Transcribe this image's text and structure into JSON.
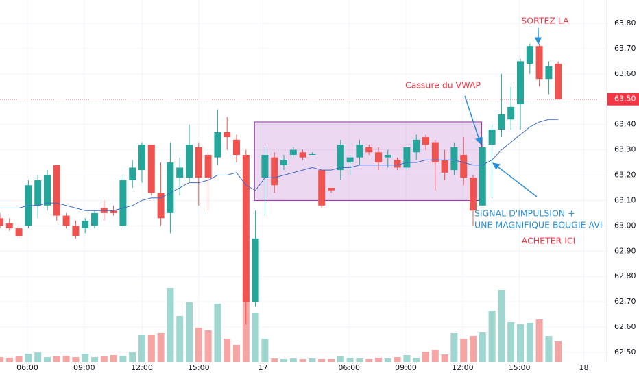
{
  "chart_data": {
    "type": "candlestick",
    "x": [
      0,
      1,
      2,
      3,
      4,
      5,
      6,
      7,
      8,
      9,
      10,
      11,
      12,
      13,
      14,
      15,
      16,
      17,
      18,
      19,
      20,
      21,
      22,
      23,
      24,
      25,
      26,
      27,
      28,
      29,
      30,
      31,
      32,
      33,
      34,
      35,
      36,
      37,
      38,
      39,
      40,
      41,
      42,
      43,
      44,
      45,
      46,
      47,
      48,
      49,
      50,
      51,
      52,
      53,
      54,
      55,
      56,
      57,
      58,
      59
    ],
    "open": [
      63.03,
      63.01,
      62.99,
      63.0,
      63.08,
      63.08,
      63.24,
      63.04,
      63.0,
      62.99,
      63.0,
      63.07,
      63.06,
      63.0,
      63.18,
      63.22,
      63.32,
      63.13,
      63.05,
      63.19,
      63.19,
      63.31,
      63.28,
      63.27,
      63.37,
      63.34,
      63.28,
      62.7,
      63.19,
      63.27,
      63.24,
      63.28,
      63.29,
      63.28,
      63.22,
      63.15,
      63.22,
      63.25,
      63.27,
      63.31,
      63.29,
      63.27,
      63.26,
      63.23,
      63.29,
      63.35,
      63.33,
      63.26,
      63.22,
      63.28,
      63.19,
      63.08,
      63.32,
      63.38,
      63.42,
      63.48,
      63.64,
      63.71,
      63.58,
      63.64
    ],
    "high": [
      63.05,
      63.03,
      63.0,
      63.18,
      63.2,
      63.22,
      63.24,
      63.05,
      63.02,
      63.03,
      63.06,
      63.1,
      63.08,
      63.2,
      63.26,
      63.33,
      63.32,
      63.25,
      63.33,
      63.27,
      63.4,
      63.33,
      63.29,
      63.46,
      63.43,
      63.36,
      63.3,
      63.06,
      63.31,
      63.29,
      63.28,
      63.31,
      63.3,
      63.29,
      63.22,
      63.15,
      63.34,
      63.28,
      63.34,
      63.32,
      63.31,
      63.3,
      63.27,
      63.32,
      63.36,
      63.36,
      63.34,
      63.3,
      63.33,
      63.35,
      63.2,
      63.35,
      63.4,
      63.6,
      63.55,
      63.66,
      63.72,
      63.72,
      63.65,
      63.65
    ],
    "low": [
      62.99,
      62.98,
      62.95,
      62.99,
      63.03,
      63.06,
      63.02,
      62.99,
      62.95,
      62.97,
      62.99,
      63.02,
      63.04,
      62.99,
      63.15,
      63.17,
      63.12,
      63.0,
      62.97,
      63.12,
      63.17,
      63.08,
      63.06,
      63.24,
      63.3,
      63.25,
      62.61,
      62.68,
      63.04,
      63.13,
      63.22,
      63.27,
      63.26,
      63.28,
      63.07,
      63.13,
      63.18,
      63.2,
      63.24,
      63.28,
      63.22,
      63.23,
      63.22,
      63.22,
      63.26,
      63.3,
      63.14,
      63.18,
      63.2,
      63.16,
      63.0,
      63.08,
      63.11,
      63.35,
      63.38,
      63.38,
      63.6,
      63.55,
      63.52,
      63.5
    ],
    "close": [
      63.0,
      62.99,
      62.96,
      63.16,
      63.18,
      63.2,
      63.04,
      63.0,
      62.96,
      63.02,
      63.05,
      63.05,
      63.05,
      63.18,
      63.23,
      63.32,
      63.13,
      63.03,
      63.25,
      63.23,
      63.32,
      63.19,
      63.19,
      63.37,
      63.35,
      63.28,
      62.7,
      62.95,
      63.28,
      63.16,
      63.26,
      63.3,
      63.27,
      63.285,
      63.08,
      63.14,
      63.32,
      63.27,
      63.32,
      63.29,
      63.25,
      63.28,
      63.23,
      63.31,
      63.34,
      63.32,
      63.25,
      63.21,
      63.31,
      63.19,
      63.06,
      63.31,
      63.38,
      63.44,
      63.47,
      63.65,
      63.71,
      63.58,
      63.63,
      63.5
    ],
    "volume": [
      7,
      6,
      8,
      12,
      14,
      7,
      8,
      9,
      7,
      12,
      7,
      8,
      10,
      9,
      14,
      40,
      40,
      42,
      108,
      67,
      87,
      50,
      46,
      85,
      34,
      25,
      100,
      72,
      34,
      5,
      4,
      5,
      4,
      5,
      4,
      4,
      8,
      6,
      5,
      4,
      6,
      5,
      7,
      10,
      6,
      15,
      18,
      11,
      42,
      34,
      38,
      43,
      75,
      105,
      58,
      55,
      57,
      62,
      38,
      30
    ],
    "vlim": [
      0,
      130
    ],
    "vwap": {
      "color": "#3d6bc4",
      "values": [
        63.07,
        63.07,
        63.07,
        63.08,
        63.08,
        63.09,
        63.09,
        63.08,
        63.07,
        63.06,
        63.06,
        63.06,
        63.06,
        63.07,
        63.08,
        63.1,
        63.11,
        63.11,
        63.13,
        63.15,
        63.17,
        63.17,
        63.18,
        63.2,
        63.2,
        63.21,
        63.16,
        63.14,
        63.19,
        63.19,
        63.2,
        63.21,
        63.22,
        63.23,
        63.22,
        63.22,
        63.23,
        63.23,
        63.24,
        63.24,
        63.24,
        63.24,
        63.24,
        63.25,
        63.25,
        63.26,
        63.26,
        63.26,
        63.26,
        63.25,
        63.24,
        63.24,
        63.26,
        63.3,
        63.33,
        63.36,
        63.39,
        63.41,
        63.42,
        63.42
      ]
    },
    "up_color": "#26a69a",
    "down_color": "#ef5350",
    "up_volume_color": "#9fd6cf",
    "down_volume_color": "#f5a5a4",
    "xlim": [
      0,
      64.13
    ],
    "xticks": [
      {
        "value": 2.9,
        "label": "06:00"
      },
      {
        "value": 8.9,
        "label": "09:00"
      },
      {
        "value": 15,
        "label": "12:00"
      },
      {
        "value": 21,
        "label": "15:00"
      },
      {
        "value": 27.8,
        "label": "17"
      },
      {
        "value": 36.9,
        "label": "06:00"
      },
      {
        "value": 42.9,
        "label": "09:00"
      },
      {
        "value": 48.9,
        "label": "12:00"
      },
      {
        "value": 54.9,
        "label": "15:00"
      },
      {
        "value": 61.7,
        "label": "18"
      }
    ],
    "ylim": [
      62.462,
      63.892
    ],
    "yticks": [
      {
        "value": 62.5,
        "label": "62.50"
      },
      {
        "value": 62.6,
        "label": "62.60"
      },
      {
        "value": 62.7,
        "label": "62.70"
      },
      {
        "value": 62.8,
        "label": "62.80"
      },
      {
        "value": 62.9,
        "label": "62.90"
      },
      {
        "value": 63.0,
        "label": "63.00"
      },
      {
        "value": 63.1,
        "label": "63.10"
      },
      {
        "value": 63.2,
        "label": "63.20"
      },
      {
        "value": 63.3,
        "label": "63.30"
      },
      {
        "value": 63.4,
        "label": "63.40"
      },
      {
        "value": 63.6,
        "label": "63.60"
      },
      {
        "value": 63.7,
        "label": "63.70"
      },
      {
        "value": 63.8,
        "label": "63.80"
      }
    ],
    "grid": true,
    "last_price": {
      "value": 63.5,
      "label": "63.50",
      "color": "#f23645"
    },
    "range_box": {
      "x": [
        26.9,
        50.9
      ],
      "y": [
        63.1,
        63.41
      ],
      "color": "#9c27b0"
    },
    "annotations": [
      "SORTEZ LA",
      "Cassure du VWAP",
      "SIGNAL D'IMPULSION +",
      "UNE MAGNIFIQUE BOUGIE AVI",
      "ACHETER ICI"
    ]
  }
}
